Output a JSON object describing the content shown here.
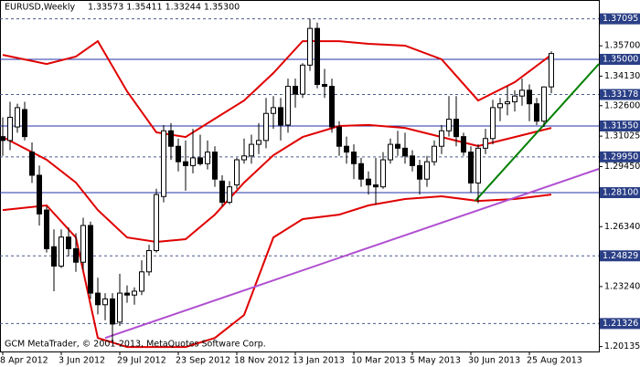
{
  "chart_data": {
    "type": "candlestick",
    "title": "EURUSD,Weekly",
    "subtitle": "1.33573 1.35411 1.33244 1.35300",
    "footer": "GCM MetaTrader, © 2001-2013, MetaQuotes Software Corp.",
    "categories": [
      "8 Apr 2012",
      null,
      null,
      null,
      null,
      null,
      null,
      null,
      "3 Jun 2012",
      null,
      null,
      null,
      null,
      null,
      null,
      null,
      "29 Jul 2012",
      null,
      null,
      null,
      null,
      null,
      null,
      null,
      "23 Sep 2012",
      null,
      null,
      null,
      null,
      null,
      null,
      null,
      "18 Nov 2012",
      null,
      null,
      null,
      null,
      null,
      null,
      null,
      "13 Jan 2013",
      null,
      null,
      null,
      null,
      null,
      null,
      null,
      "10 Mar 2013",
      null,
      null,
      null,
      null,
      null,
      null,
      null,
      "5 May 2013",
      null,
      null,
      null,
      null,
      null,
      null,
      null,
      "30 Jun 2013",
      null,
      null,
      null,
      null,
      null,
      null,
      null,
      "25 Aug 2013",
      null,
      null,
      null
    ],
    "open": [
      1.31,
      1.308,
      1.315,
      1.324,
      1.302,
      1.29,
      1.272,
      1.253,
      1.243,
      1.258,
      1.252,
      1.245,
      1.264,
      1.229,
      1.223,
      1.226,
      1.214,
      1.229,
      1.228,
      1.23,
      1.24,
      1.251,
      1.279,
      1.313,
      1.305,
      1.297,
      1.295,
      1.299,
      1.296,
      1.302,
      1.287,
      1.276,
      1.285,
      1.298,
      1.3,
      1.306,
      1.308,
      1.322,
      1.325,
      1.316,
      1.336,
      1.332,
      1.347,
      1.366,
      1.337,
      1.336,
      1.315,
      1.305,
      1.302,
      1.296,
      1.288,
      1.285,
      1.284,
      1.298,
      1.306,
      1.304,
      1.3,
      1.295,
      1.288,
      1.297,
      1.305,
      1.313,
      1.319,
      1.31,
      1.302,
      1.286,
      1.304,
      1.309,
      1.325,
      1.327,
      1.328,
      1.331,
      1.334,
      1.327,
      1.318,
      1.33573
    ],
    "high": [
      1.32,
      1.328,
      1.327,
      1.328,
      1.307,
      1.295,
      1.274,
      1.262,
      1.262,
      1.263,
      1.26,
      1.268,
      1.266,
      1.237,
      1.229,
      1.229,
      1.239,
      1.233,
      1.232,
      1.246,
      1.254,
      1.283,
      1.316,
      1.317,
      1.309,
      1.308,
      1.314,
      1.311,
      1.308,
      1.305,
      1.29,
      1.287,
      1.299,
      1.309,
      1.311,
      1.317,
      1.33,
      1.331,
      1.33,
      1.34,
      1.34,
      1.348,
      1.371,
      1.369,
      1.345,
      1.34,
      1.318,
      1.31,
      1.306,
      1.299,
      1.292,
      1.299,
      1.302,
      1.309,
      1.313,
      1.312,
      1.303,
      1.298,
      1.3,
      1.308,
      1.316,
      1.331,
      1.331,
      1.312,
      1.305,
      1.306,
      1.314,
      1.329,
      1.33,
      1.336,
      1.334,
      1.34,
      1.337,
      1.33,
      1.336,
      1.35411
    ],
    "low": [
      1.3,
      1.303,
      1.312,
      1.308,
      1.286,
      1.264,
      1.25,
      1.23,
      1.242,
      1.248,
      1.24,
      1.241,
      1.226,
      1.218,
      1.215,
      1.204,
      1.212,
      1.224,
      1.223,
      1.228,
      1.238,
      1.25,
      1.276,
      1.298,
      1.292,
      1.282,
      1.291,
      1.295,
      1.293,
      1.284,
      1.274,
      1.275,
      1.283,
      1.296,
      1.296,
      1.301,
      1.304,
      1.314,
      1.308,
      1.312,
      1.325,
      1.33,
      1.344,
      1.335,
      1.33,
      1.312,
      1.3,
      1.296,
      1.288,
      1.284,
      1.28,
      1.275,
      1.283,
      1.296,
      1.3,
      1.296,
      1.292,
      1.28,
      1.284,
      1.295,
      1.301,
      1.31,
      1.305,
      1.3,
      1.281,
      1.2755,
      1.301,
      1.306,
      1.318,
      1.321,
      1.323,
      1.326,
      1.318,
      1.316,
      1.315,
      1.33244
    ],
    "close": [
      1.308,
      1.32,
      1.325,
      1.31,
      1.29,
      1.27,
      1.252,
      1.243,
      1.258,
      1.252,
      1.245,
      1.264,
      1.229,
      1.223,
      1.226,
      1.213,
      1.229,
      1.228,
      1.23,
      1.24,
      1.251,
      1.28,
      1.313,
      1.305,
      1.297,
      1.295,
      1.299,
      1.296,
      1.302,
      1.288,
      1.276,
      1.284,
      1.298,
      1.3,
      1.306,
      1.308,
      1.322,
      1.325,
      1.316,
      1.336,
      1.332,
      1.347,
      1.366,
      1.337,
      1.336,
      1.315,
      1.305,
      1.302,
      1.296,
      1.288,
      1.285,
      1.284,
      1.298,
      1.306,
      1.304,
      1.3,
      1.295,
      1.288,
      1.297,
      1.305,
      1.313,
      1.319,
      1.31,
      1.302,
      1.286,
      1.304,
      1.309,
      1.325,
      1.327,
      1.328,
      1.331,
      1.334,
      1.327,
      1.318,
      1.3357,
      1.353
    ],
    "up_color": "#ffffff",
    "down_color": "#000000",
    "xlim": [
      -0.375,
      81.5
    ],
    "ylim": [
      1.1988,
      1.3807
    ],
    "yticks": [
      {
        "value": 1.357,
        "label": "1.35700"
      },
      {
        "value": 1.3413,
        "label": "1.34130"
      },
      {
        "value": 1.326,
        "label": "1.32600"
      },
      {
        "value": 1.31025,
        "label": "1.31025"
      },
      {
        "value": 1.2945,
        "label": "1.29450"
      },
      {
        "value": 1.2634,
        "label": "1.26340"
      },
      {
        "value": 1.2324,
        "label": "1.23240"
      },
      {
        "value": 1.20135,
        "label": "1.20135"
      }
    ],
    "levels": [
      {
        "value": 1.37095,
        "label": "1.37095",
        "style": "dashed"
      },
      {
        "value": 1.35,
        "label": "1.35000",
        "style": "solid"
      },
      {
        "value": 1.33178,
        "label": "1.33178",
        "style": "dashed"
      },
      {
        "value": 1.3155,
        "label": "1.31550",
        "style": "solid"
      },
      {
        "value": 1.2995,
        "label": "1.29950",
        "style": "dashed"
      },
      {
        "value": 1.281,
        "label": "1.28100",
        "style": "solid"
      },
      {
        "value": 1.24829,
        "label": "1.24829",
        "style": "dashed"
      },
      {
        "value": 1.21326,
        "label": "1.21326",
        "style": "dashed"
      }
    ],
    "lines": [
      {
        "color": "#e00000",
        "x": [
          0,
          6,
          10,
          13,
          17,
          21,
          25,
          29,
          33,
          37,
          41,
          46,
          50,
          55,
          60,
          65,
          70,
          75
        ],
        "values": [
          1.3523,
          1.3476,
          1.3514,
          1.3594,
          1.3334,
          1.3122,
          1.3098,
          1.3193,
          1.3287,
          1.3429,
          1.3594,
          1.3594,
          1.358,
          1.3571,
          1.35,
          1.3287,
          1.3382,
          1.3523
        ]
      },
      {
        "color": "#e00000",
        "x": [
          0,
          6,
          10,
          13,
          17,
          21,
          25,
          29,
          33,
          37,
          41,
          46,
          50,
          55,
          60,
          65,
          70,
          75
        ],
        "values": [
          1.3098,
          1.298,
          1.2862,
          1.272,
          1.2578,
          1.2555,
          1.2569,
          1.2696,
          1.2862,
          1.3004,
          1.3098,
          1.3155,
          1.316,
          1.3145,
          1.3098,
          1.3051,
          1.3098,
          1.3145
        ]
      },
      {
        "color": "#e00000",
        "x": [
          0,
          6,
          10,
          13,
          17,
          21,
          25,
          29,
          33,
          37,
          41,
          46,
          50,
          55,
          60,
          65,
          70,
          75
        ],
        "values": [
          1.272,
          1.2744,
          1.2578,
          1.2058,
          1.2011,
          1.2011,
          1.2011,
          1.2058,
          1.2177,
          1.2578,
          1.2673,
          1.2696,
          1.2744,
          1.2777,
          1.2791,
          1.2767,
          1.2777,
          1.28
        ]
      },
      {
        "color": "#b050d0",
        "x": [
          14,
          81.5
        ],
        "values": [
          1.2058,
          1.2933
        ]
      },
      {
        "color": "#008000",
        "x": [
          64.6,
          81.5
        ],
        "values": [
          1.2767,
          1.3476
        ]
      }
    ]
  }
}
